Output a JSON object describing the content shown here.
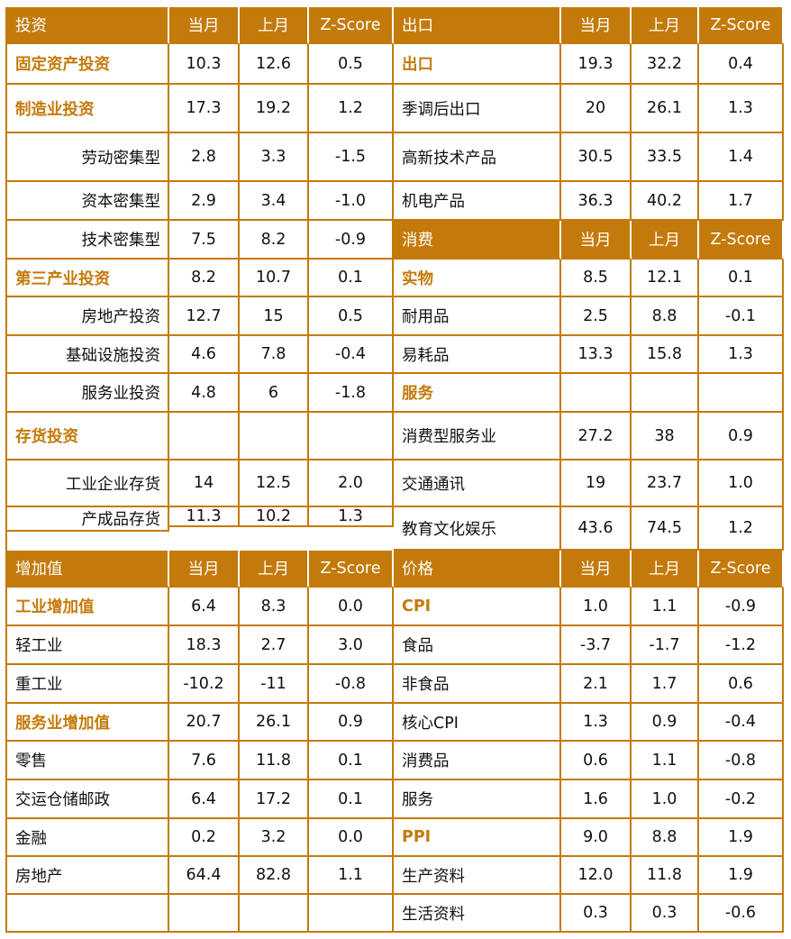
{
  "colors": {
    "accent": "#c47a0a",
    "header_text": "#ffffff",
    "body_text": "#111111",
    "background": "#ffffff"
  },
  "column_headers": {
    "current": "当月",
    "previous": "上月",
    "zscore": "Z-Score"
  },
  "sections": {
    "investment": {
      "title": "投资",
      "rows": [
        {
          "label": "固定资产投资",
          "style": "bold",
          "current": "10.3",
          "previous": "12.6",
          "zscore": "0.5"
        },
        {
          "label": "制造业投资",
          "style": "bold",
          "current": "17.3",
          "previous": "19.2",
          "zscore": "1.2"
        },
        {
          "label": "劳动密集型",
          "style": "indent",
          "current": "2.8",
          "previous": "3.3",
          "zscore": "-1.5"
        },
        {
          "label": "资本密集型",
          "style": "indent",
          "current": "2.9",
          "previous": "3.4",
          "zscore": "-1.0"
        },
        {
          "label": "技术密集型",
          "style": "indent",
          "current": "7.5",
          "previous": "8.2",
          "zscore": "-0.9"
        },
        {
          "label": "第三产业投资",
          "style": "bold",
          "current": "8.2",
          "previous": "10.7",
          "zscore": "0.1"
        },
        {
          "label": "房地产投资",
          "style": "indent",
          "current": "12.7",
          "previous": "15",
          "zscore": "0.5"
        },
        {
          "label": "基础设施投资",
          "style": "indent",
          "current": "4.6",
          "previous": "7.8",
          "zscore": "-0.4"
        },
        {
          "label": "服务业投资",
          "style": "indent",
          "current": "4.8",
          "previous": "6",
          "zscore": "-1.8"
        },
        {
          "label": "存货投资",
          "style": "bold",
          "current": "",
          "previous": "",
          "zscore": ""
        },
        {
          "label": "工业企业存货",
          "style": "indent",
          "current": "14",
          "previous": "12.5",
          "zscore": "2.0"
        },
        {
          "label": "产成品存货",
          "style": "indent",
          "current": "11.3",
          "previous": "10.2",
          "zscore": "1.3"
        }
      ]
    },
    "exports": {
      "title": "出口",
      "rows": [
        {
          "label": "出口",
          "style": "bold",
          "current": "19.3",
          "previous": "32.2",
          "zscore": "0.4"
        },
        {
          "label": "季调后出口",
          "style": "plain",
          "current": "20",
          "previous": "26.1",
          "zscore": "1.3"
        },
        {
          "label": "高新技术产品",
          "style": "plain",
          "current": "30.5",
          "previous": "33.5",
          "zscore": "1.4"
        },
        {
          "label": "机电产品",
          "style": "plain",
          "current": "36.3",
          "previous": "40.2",
          "zscore": "1.7"
        }
      ]
    },
    "consumption": {
      "title": "消费",
      "rows": [
        {
          "label": "实物",
          "style": "bold",
          "current": "8.5",
          "previous": "12.1",
          "zscore": "0.1"
        },
        {
          "label": "耐用品",
          "style": "plain",
          "current": "2.5",
          "previous": "8.8",
          "zscore": "-0.1"
        },
        {
          "label": "易耗品",
          "style": "plain",
          "current": "13.3",
          "previous": "15.8",
          "zscore": "1.3"
        },
        {
          "label": "服务",
          "style": "bold",
          "current": "",
          "previous": "",
          "zscore": ""
        },
        {
          "label": "消费型服务业",
          "style": "plain",
          "current": "27.2",
          "previous": "38",
          "zscore": "0.9"
        },
        {
          "label": "交通通讯",
          "style": "plain",
          "current": "19",
          "previous": "23.7",
          "zscore": "1.0"
        },
        {
          "label": "教育文化娱乐",
          "style": "plain",
          "current": "43.6",
          "previous": "74.5",
          "zscore": "1.2"
        }
      ]
    },
    "value_added": {
      "title": "增加值",
      "rows": [
        {
          "label": "工业增加值",
          "style": "bold",
          "current": "6.4",
          "previous": "8.3",
          "zscore": "0.0"
        },
        {
          "label": "轻工业",
          "style": "plain",
          "current": "18.3",
          "previous": "2.7",
          "zscore": "3.0"
        },
        {
          "label": "重工业",
          "style": "plain",
          "current": "-10.2",
          "previous": "-11",
          "zscore": "-0.8"
        },
        {
          "label": "服务业增加值",
          "style": "bold",
          "current": "20.7",
          "previous": "26.1",
          "zscore": "0.9"
        },
        {
          "label": "零售",
          "style": "plain",
          "current": "7.6",
          "previous": "11.8",
          "zscore": "0.1"
        },
        {
          "label": "交运仓储邮政",
          "style": "plain",
          "current": "6.4",
          "previous": "17.2",
          "zscore": "0.1"
        },
        {
          "label": "金融",
          "style": "plain",
          "current": "0.2",
          "previous": "3.2",
          "zscore": "0.0"
        },
        {
          "label": "房地产",
          "style": "plain",
          "current": "64.4",
          "previous": "82.8",
          "zscore": "1.1"
        },
        {
          "label": "",
          "style": "plain",
          "current": "",
          "previous": "",
          "zscore": ""
        }
      ]
    },
    "prices": {
      "title": "价格",
      "rows": [
        {
          "label": "CPI",
          "style": "bold",
          "current": "1.0",
          "previous": "1.1",
          "zscore": "-0.9"
        },
        {
          "label": "食品",
          "style": "plain",
          "current": "-3.7",
          "previous": "-1.7",
          "zscore": "-1.2"
        },
        {
          "label": "非食品",
          "style": "plain",
          "current": "2.1",
          "previous": "1.7",
          "zscore": "0.6"
        },
        {
          "label": "核心CPI",
          "style": "plain",
          "current": "1.3",
          "previous": "0.9",
          "zscore": "-0.4"
        },
        {
          "label": "消费品",
          "style": "plain",
          "current": "0.6",
          "previous": "1.1",
          "zscore": "-0.8"
        },
        {
          "label": "服务",
          "style": "plain",
          "current": "1.6",
          "previous": "1.0",
          "zscore": "-0.2"
        },
        {
          "label": "PPI",
          "style": "bold",
          "current": "9.0",
          "previous": "8.8",
          "zscore": "1.9"
        },
        {
          "label": "生产资料",
          "style": "plain",
          "current": "12.0",
          "previous": "11.8",
          "zscore": "1.9"
        },
        {
          "label": "生活资料",
          "style": "plain",
          "current": "0.3",
          "previous": "0.3",
          "zscore": "-0.6"
        }
      ]
    }
  }
}
